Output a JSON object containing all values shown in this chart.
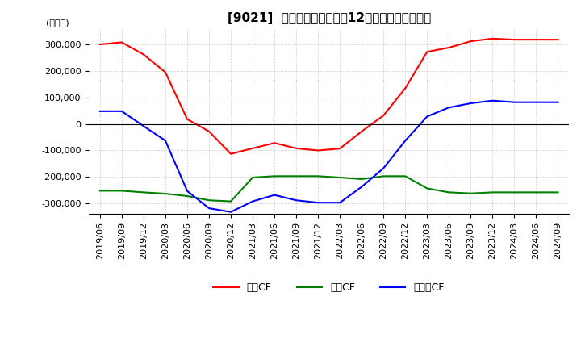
{
  "title": "[9021]  キャッシュフローの12か月移動合計の推移",
  "ylabel": "(百万円)",
  "ylim": [
    -340000,
    360000
  ],
  "yticks": [
    -300000,
    -200000,
    -100000,
    0,
    100000,
    200000,
    300000
  ],
  "legend_labels": [
    "営業CF",
    "投資CF",
    "フリーCF"
  ],
  "legend_colors": [
    "#ff0000",
    "#008000",
    "#0000ff"
  ],
  "dates": [
    "2019/06",
    "2019/09",
    "2019/12",
    "2020/03",
    "2020/06",
    "2020/09",
    "2020/12",
    "2021/03",
    "2021/06",
    "2021/09",
    "2021/12",
    "2022/03",
    "2022/06",
    "2022/09",
    "2022/12",
    "2023/03",
    "2023/06",
    "2023/09",
    "2023/12",
    "2024/03",
    "2024/06",
    "2024/09"
  ],
  "operating_cf": [
    300000,
    308000,
    262000,
    195000,
    18000,
    -28000,
    -113000,
    -92000,
    -72000,
    -92000,
    -100000,
    -93000,
    -28000,
    32000,
    135000,
    272000,
    288000,
    312000,
    322000,
    318000,
    318000,
    318000
  ],
  "investing_cf": [
    -252000,
    -252000,
    -258000,
    -263000,
    -272000,
    -288000,
    -292000,
    -202000,
    -197000,
    -197000,
    -197000,
    -202000,
    -208000,
    -197000,
    -197000,
    -243000,
    -258000,
    -262000,
    -258000,
    -258000,
    -258000,
    -258000
  ],
  "free_cf": [
    48000,
    48000,
    -8000,
    -63000,
    -253000,
    -318000,
    -332000,
    -292000,
    -268000,
    -288000,
    -297000,
    -297000,
    -237000,
    -167000,
    -63000,
    28000,
    62000,
    78000,
    88000,
    82000,
    82000,
    82000
  ],
  "background_color": "#ffffff",
  "grid_color": "#aaaaaa",
  "title_fontsize": 11,
  "label_fontsize": 8
}
